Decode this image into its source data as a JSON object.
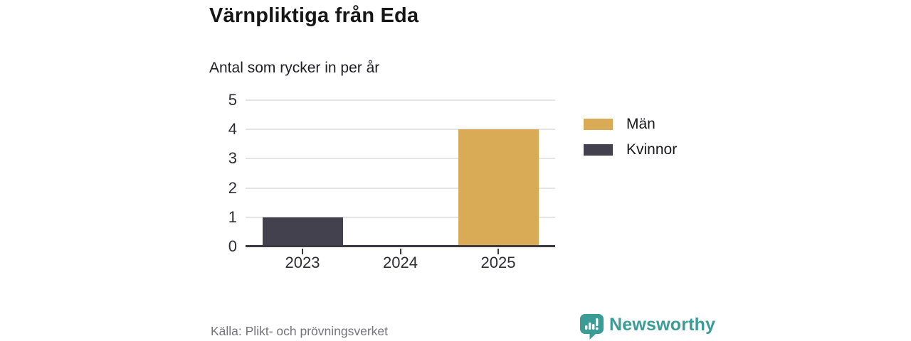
{
  "chart_data": {
    "type": "bar",
    "title": "Värnpliktiga från Eda",
    "subtitle": "Antal som rycker in per år",
    "categories": [
      "2023",
      "2024",
      "2025"
    ],
    "series": [
      {
        "name": "Män",
        "color": "#d9ab57",
        "values": [
          0,
          0,
          4
        ]
      },
      {
        "name": "Kvinnor",
        "color": "#44414e",
        "values": [
          1,
          0,
          0
        ]
      }
    ],
    "ylim": [
      0,
      5
    ],
    "yticks": [
      0,
      1,
      2,
      3,
      4,
      5
    ],
    "grid": true,
    "legend_position": "right",
    "source": "Källa: Plikt- och prövningsverket"
  },
  "style": {
    "grid_color": "#e4e4e7",
    "axis_color": "#3b3a44",
    "tick_label_color": "#2e2e34"
  },
  "brand": {
    "name": "Newsworthy",
    "color": "#3a9d95",
    "icon": "newsworthy-speech-bubble-barchart-icon"
  }
}
